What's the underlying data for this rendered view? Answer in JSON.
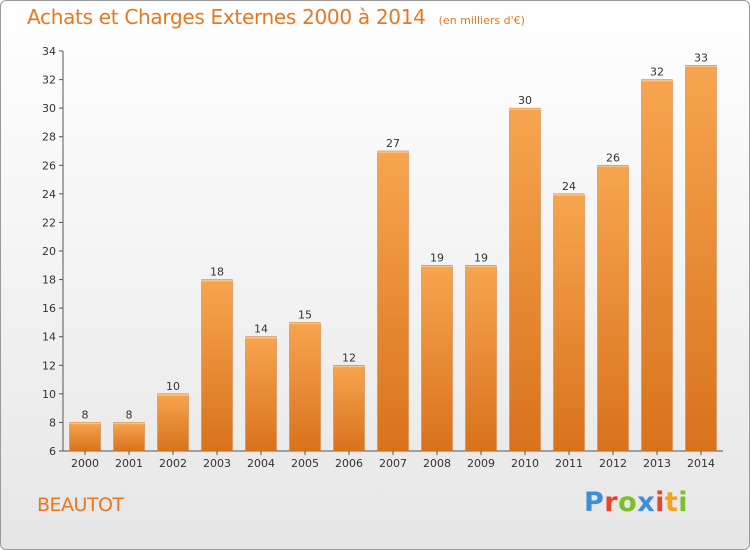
{
  "header": {
    "title": "Achats et Charges Externes 2000 à 2014",
    "subtitle": "(en milliers d'€)"
  },
  "footer": {
    "place": "BEAUTOT",
    "logo_letters": [
      "P",
      "r",
      "o",
      "x",
      "i",
      "t",
      "i"
    ],
    "logo_colors": [
      "#3a8fd6",
      "#e8442a",
      "#7bbf2a",
      "#3a8fd6",
      "#e8442a",
      "#f2a31b",
      "#7bbf2a"
    ]
  },
  "colors": {
    "bar_light": "#f7a550",
    "bar_dark": "#d9721c",
    "accent": "#e87820"
  },
  "chart_data": {
    "type": "bar",
    "categories": [
      "2000",
      "2001",
      "2002",
      "2003",
      "2004",
      "2005",
      "2006",
      "2007",
      "2008",
      "2009",
      "2010",
      "2011",
      "2012",
      "2013",
      "2014"
    ],
    "values": [
      8,
      8,
      10,
      18,
      14,
      15,
      12,
      27,
      19,
      19,
      30,
      24,
      26,
      32,
      33
    ],
    "ylim": [
      6,
      34
    ],
    "yticks": [
      6,
      8,
      10,
      12,
      14,
      16,
      18,
      20,
      22,
      24,
      26,
      28,
      30,
      32,
      34
    ],
    "grid": false,
    "data_labels": true
  }
}
